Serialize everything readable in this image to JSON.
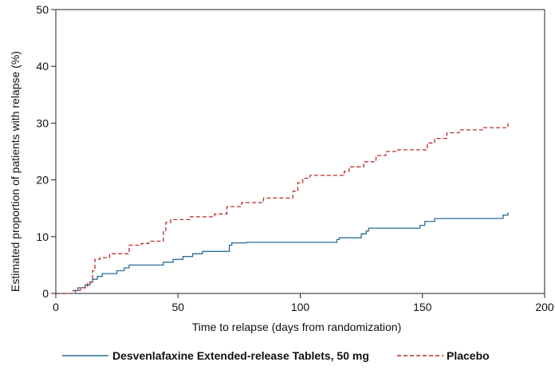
{
  "chart_data": {
    "type": "line",
    "step": true,
    "xlabel": "Time to relapse (days from randomization)",
    "ylabel": "Estimated proportion of patients with relapse (%)",
    "xlim": [
      0,
      200
    ],
    "ylim": [
      0,
      50
    ],
    "x_ticks": [
      0,
      50,
      100,
      150,
      200
    ],
    "y_ticks": [
      0,
      10,
      20,
      30,
      40,
      50
    ],
    "grid": false,
    "legend_position": "bottom",
    "series": [
      {
        "name": "Desvenlafaxine Extended-release Tablets, 50 mg",
        "color": "#2a6f97",
        "dash": "solid",
        "points": [
          [
            0,
            0
          ],
          [
            7,
            0
          ],
          [
            8,
            0.5
          ],
          [
            9,
            1.0
          ],
          [
            12,
            1.5
          ],
          [
            14,
            2.0
          ],
          [
            15,
            2.5
          ],
          [
            17,
            3.0
          ],
          [
            19,
            3.5
          ],
          [
            25,
            4.0
          ],
          [
            28,
            4.5
          ],
          [
            30,
            5.0
          ],
          [
            44,
            5.5
          ],
          [
            48,
            6.0
          ],
          [
            52,
            6.5
          ],
          [
            56,
            7.0
          ],
          [
            60,
            7.4
          ],
          [
            71,
            8.5
          ],
          [
            72,
            8.9
          ],
          [
            78,
            9.0
          ],
          [
            115,
            9.5
          ],
          [
            116,
            9.8
          ],
          [
            125,
            10.5
          ],
          [
            127,
            11.0
          ],
          [
            128,
            11.5
          ],
          [
            149,
            12.0
          ],
          [
            151,
            12.7
          ],
          [
            155,
            13.2
          ],
          [
            183,
            13.8
          ],
          [
            185,
            14.3
          ]
        ]
      },
      {
        "name": "Placebo",
        "color": "#b5302d",
        "dash": "dashed",
        "points": [
          [
            0,
            0
          ],
          [
            6,
            0
          ],
          [
            7,
            0.5
          ],
          [
            10,
            1.0
          ],
          [
            13,
            2.0
          ],
          [
            15,
            4.0
          ],
          [
            16,
            6.0
          ],
          [
            18,
            6.3
          ],
          [
            22,
            7.0
          ],
          [
            30,
            8.5
          ],
          [
            35,
            8.8
          ],
          [
            38,
            9.2
          ],
          [
            44,
            11.0
          ],
          [
            45,
            12.5
          ],
          [
            47,
            13.0
          ],
          [
            55,
            13.5
          ],
          [
            65,
            14.0
          ],
          [
            70,
            15.3
          ],
          [
            76,
            16.0
          ],
          [
            85,
            16.8
          ],
          [
            97,
            18.0
          ],
          [
            99,
            19.5
          ],
          [
            101,
            20.3
          ],
          [
            104,
            20.8
          ],
          [
            118,
            21.5
          ],
          [
            120,
            22.3
          ],
          [
            126,
            23.2
          ],
          [
            131,
            24.3
          ],
          [
            135,
            25.0
          ],
          [
            140,
            25.3
          ],
          [
            152,
            26.5
          ],
          [
            155,
            27.3
          ],
          [
            160,
            28.3
          ],
          [
            165,
            28.8
          ],
          [
            175,
            29.2
          ],
          [
            185,
            30.0
          ]
        ]
      }
    ]
  }
}
